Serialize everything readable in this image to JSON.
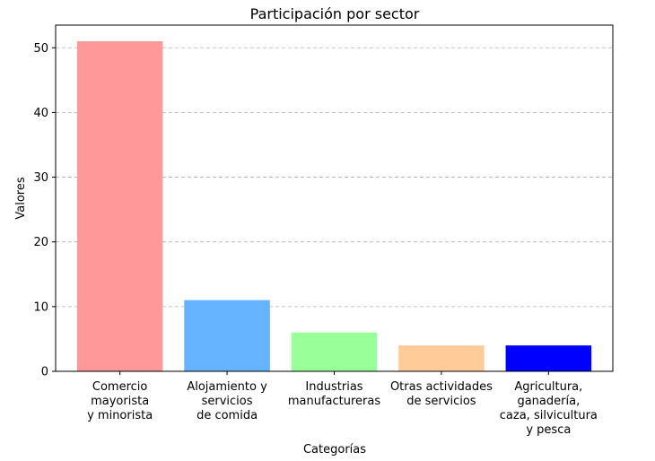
{
  "chart_data": {
    "type": "bar",
    "title": "Participación por sector",
    "xlabel": "Categorías",
    "ylabel": "Valores",
    "ylim": [
      0,
      53.5
    ],
    "yticks": [
      0,
      10,
      20,
      30,
      40,
      50
    ],
    "grid": "y-dashed",
    "categories": [
      "Comercio\nmayorista\ny minorista",
      "Alojamiento y\nservicios\nde comida",
      "Industrias\nmanufactureras",
      "Otras actividades\nde servicios",
      "Agricultura,\nganadería,\ncaza, silvicultura\ny pesca"
    ],
    "values": [
      51,
      11,
      6,
      4,
      4
    ],
    "colors": [
      "#ff9999",
      "#66b3ff",
      "#99ff99",
      "#ffcc99",
      "#0000ff"
    ]
  }
}
